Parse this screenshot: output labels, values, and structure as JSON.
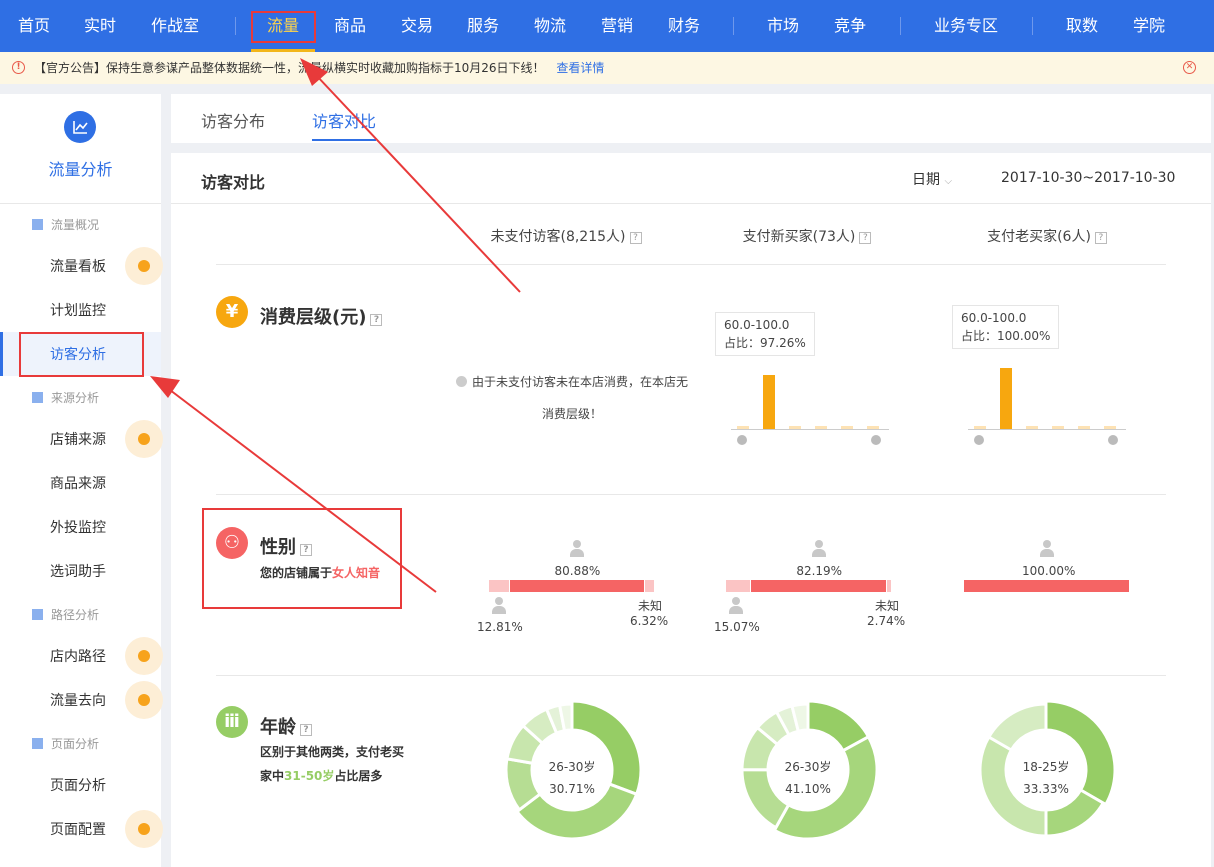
{
  "topnav": {
    "items": [
      "首页",
      "实时",
      "作战室",
      "流量",
      "商品",
      "交易",
      "服务",
      "物流",
      "营销",
      "财务",
      "市场",
      "竞争",
      "业务专区",
      "取数",
      "学院"
    ],
    "active": "流量"
  },
  "notice": {
    "text": "【官方公告】保持生意参谋产品整体数据统一性，流量纵横实时收藏加购指标于10月26日下线！",
    "link": "查看详情"
  },
  "sidebar": {
    "title": "流量分析",
    "groups": [
      {
        "label": "流量概况",
        "items": [
          "流量看板",
          "计划监控",
          "访客分析"
        ]
      },
      {
        "label": "来源分析",
        "items": [
          "店铺来源",
          "商品来源",
          "外投监控",
          "选词助手"
        ]
      },
      {
        "label": "路径分析",
        "items": [
          "店内路径",
          "流量去向"
        ]
      },
      {
        "label": "页面分析",
        "items": [
          "页面分析",
          "页面配置"
        ]
      }
    ],
    "active": "访客分析"
  },
  "tabs": [
    "访客分布",
    "访客对比"
  ],
  "active_tab": "访客对比",
  "panel": {
    "title": "访客对比",
    "date_label": "日期",
    "date_range": "2017-10-30~2017-10-30",
    "columns": [
      "未支付访客(8,215人)",
      "支付新买家(73人)",
      "支付老买家(6人)"
    ],
    "help": "?"
  },
  "spending": {
    "title": "消费层级(元)",
    "note_line1": "由于未支付访客未在本店消费，在本店无",
    "note_line2": "消费层级！",
    "charts": [
      {
        "tip_range": "60.0-100.0",
        "tip_ratio": "占比：97.26%",
        "values": [
          1.5,
          97.26,
          0.4,
          0.4,
          0.4,
          0.4
        ]
      },
      {
        "tip_range": "60.0-100.0",
        "tip_ratio": "占比：100.00%",
        "values": [
          0.4,
          100,
          0.4,
          0.4,
          0.4,
          0.4
        ]
      }
    ]
  },
  "gender": {
    "title": "性别",
    "desc_prefix": "您的店铺属于",
    "desc_highlight": "女人知音",
    "unknown_label": "未知",
    "columns": [
      {
        "female": "80.88%",
        "male": "12.81%",
        "unknown": "6.32%",
        "f": 80.88,
        "m": 12.81,
        "u": 6.32
      },
      {
        "female": "82.19%",
        "male": "15.07%",
        "unknown": "2.74%",
        "f": 82.19,
        "m": 15.07,
        "u": 2.74
      },
      {
        "female": "100.00%",
        "f": 100,
        "m": 0,
        "u": 0
      }
    ]
  },
  "age": {
    "title": "年龄",
    "desc_line1": "区别于其他两类，支付老买",
    "desc_prefix": "家中",
    "desc_highlight": "31-50岁",
    "desc_suffix": "占比居多",
    "donuts": [
      {
        "label": "26-30岁",
        "value": "30.71%",
        "segments": [
          30.71,
          34,
          13,
          9,
          7,
          3.3,
          3
        ]
      },
      {
        "label": "26-30岁",
        "value": "41.10%",
        "segments": [
          17,
          41.1,
          17,
          11,
          6,
          4,
          3.9
        ]
      },
      {
        "label": "18-25岁",
        "value": "33.33%",
        "segments": [
          33.33,
          16.67,
          33.33,
          16.67
        ]
      }
    ]
  },
  "colors": {
    "brand": "#2f6fe4",
    "bar": "#f7a70f",
    "female": "#f56464",
    "male": "#fbc4c4",
    "age": "#96cd65",
    "annotation": "#e83a3a"
  }
}
